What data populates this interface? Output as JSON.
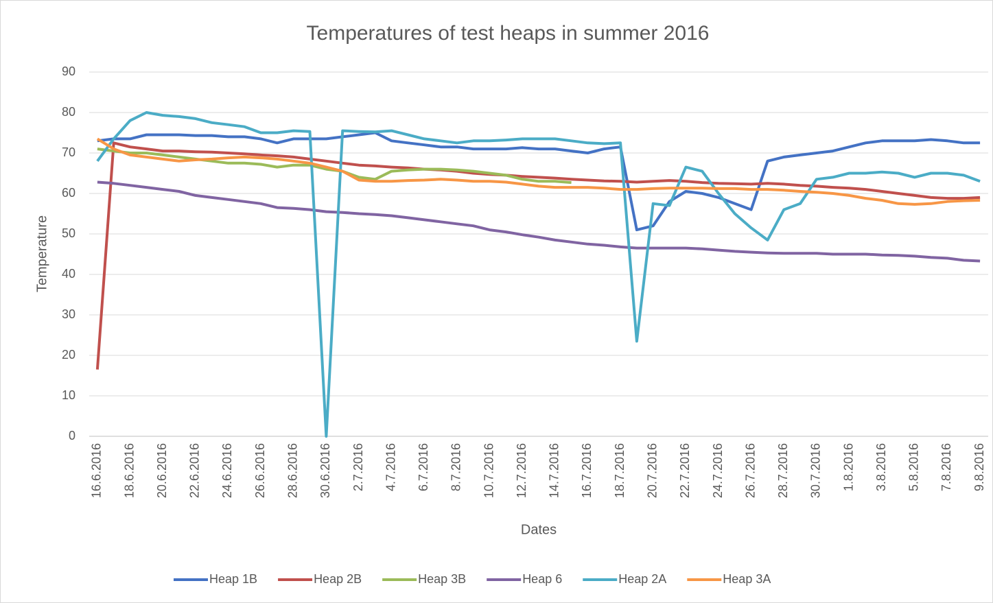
{
  "chart_data": {
    "type": "line",
    "title": "Temperatures of test heaps in summer 2016",
    "x_label": "Dates",
    "y_label": "Temperature",
    "categories": [
      "16.6.2016",
      null,
      "18.6.2016",
      null,
      "20.6.2016",
      null,
      "22.6.2016",
      null,
      "24.6.2016",
      null,
      "26.6.2016",
      null,
      "28.6.2016",
      null,
      "30.6.2016",
      null,
      "2.7.2016",
      null,
      "4.7.2016",
      null,
      "6.7.2016",
      null,
      "8.7.2016",
      null,
      "10.7.2016",
      null,
      "12.7.2016",
      null,
      "14.7.2016",
      null,
      "16.7.2016",
      null,
      "18.7.2016",
      null,
      "20.7.2016",
      null,
      "22.7.2016",
      null,
      "24.7.2016",
      null,
      "26.7.2016",
      null,
      "28.7.2016",
      null,
      "30.7.2016",
      null,
      "1.8.2016",
      null,
      "3.8.2016",
      null,
      "5.8.2016",
      null,
      "7.8.2016",
      null,
      "9.8.2016"
    ],
    "series": [
      {
        "name": "Heap 1B",
        "color": "#4472c4",
        "values": [
          73,
          73.5,
          73.5,
          74.5,
          74.5,
          74.5,
          74.3,
          74.3,
          74,
          74,
          73.5,
          72.5,
          73.5,
          73.5,
          73.5,
          74,
          74.5,
          75,
          73,
          72.5,
          72,
          71.5,
          71.5,
          71,
          71,
          71,
          71.3,
          71,
          71,
          70.5,
          70,
          71,
          71.5,
          51,
          52,
          58,
          60.5,
          60,
          59,
          57.5,
          56,
          68,
          69,
          69.5,
          70,
          70.5,
          71.5,
          72.5,
          73,
          73,
          73,
          73.3,
          73,
          72.5,
          72.5
        ]
      },
      {
        "name": "Heap 2B",
        "color": "#c0504d",
        "values": [
          16.5,
          72.5,
          71.5,
          71,
          70.5,
          70.5,
          70.3,
          70.2,
          70,
          69.8,
          69.5,
          69.3,
          69,
          68.5,
          68,
          67.5,
          67,
          66.8,
          66.5,
          66.3,
          66,
          65.8,
          65.5,
          65,
          64.7,
          64.5,
          64.2,
          64,
          63.8,
          63.5,
          63.3,
          63.1,
          63,
          62.8,
          63,
          63.2,
          63,
          62.7,
          62.5,
          62.4,
          62.3,
          62.5,
          62.3,
          62,
          61.8,
          61.5,
          61.3,
          61,
          60.5,
          60,
          59.5,
          59,
          58.8,
          58.8,
          59
        ]
      },
      {
        "name": "Heap 3B",
        "color": "#9bbb59",
        "values": [
          71,
          70.5,
          70,
          70,
          69.5,
          69,
          68.5,
          68,
          67.5,
          67.5,
          67.2,
          66.5,
          67,
          67,
          66,
          65.5,
          64,
          63.5,
          65.5,
          65.8,
          66,
          66,
          65.8,
          65.5,
          65,
          64.5,
          63.5,
          63,
          63,
          62.7,
          null,
          null,
          null,
          null,
          null,
          null,
          null,
          null,
          null,
          null,
          null,
          null,
          null,
          null,
          null,
          null,
          null,
          null,
          null,
          null,
          null,
          null,
          null,
          null,
          null
        ]
      },
      {
        "name": "Heap 6",
        "color": "#8064a2",
        "values": [
          62.8,
          62.5,
          62,
          61.5,
          61,
          60.5,
          59.5,
          59,
          58.5,
          58,
          57.5,
          56.5,
          56.3,
          56,
          55.5,
          55.3,
          55,
          54.8,
          54.5,
          54,
          53.5,
          53,
          52.5,
          52,
          51,
          50.5,
          49.8,
          49.2,
          48.5,
          48,
          47.5,
          47.2,
          46.8,
          46.5,
          46.5,
          46.5,
          46.5,
          46.3,
          46,
          45.7,
          45.5,
          45.3,
          45.2,
          45.2,
          45.2,
          45,
          45,
          45,
          44.8,
          44.7,
          44.5,
          44.2,
          44,
          43.5,
          43.3
        ]
      },
      {
        "name": "Heap 2A",
        "color": "#4bacc6",
        "values": [
          68,
          73.5,
          78,
          80,
          79.3,
          79,
          78.5,
          77.5,
          77,
          76.5,
          75,
          75,
          75.5,
          75.3,
          0,
          75.5,
          75.3,
          75.2,
          75.5,
          74.5,
          73.5,
          73,
          72.5,
          73,
          73,
          73.2,
          73.5,
          73.5,
          73.5,
          73,
          72.5,
          72.3,
          72.5,
          23.5,
          57.5,
          57,
          66.5,
          65.5,
          60,
          55,
          51.5,
          48.5,
          56,
          57.5,
          63.5,
          64,
          65,
          65,
          65.3,
          65,
          64,
          65,
          65,
          64.5,
          63
        ]
      },
      {
        "name": "Heap 3A",
        "color": "#f79646",
        "values": [
          73.5,
          71,
          69.5,
          69,
          68.5,
          68,
          68.3,
          68.5,
          68.8,
          69,
          68.8,
          68.5,
          68,
          67.5,
          66.5,
          65.5,
          63.3,
          63,
          63,
          63.2,
          63.3,
          63.5,
          63.3,
          63,
          63,
          62.8,
          62.3,
          61.8,
          61.5,
          61.5,
          61.5,
          61.3,
          61,
          61,
          61.2,
          61.3,
          61.3,
          61.3,
          61.2,
          61.2,
          61,
          61,
          60.8,
          60.5,
          60.3,
          60,
          59.5,
          58.8,
          58.3,
          57.5,
          57.3,
          57.5,
          58,
          58.2,
          58.3
        ]
      }
    ],
    "ylim": [
      0,
      90
    ],
    "yticks": [
      0,
      10,
      20,
      30,
      40,
      50,
      60,
      70,
      80,
      90
    ],
    "grid": true,
    "legend": "bottom"
  }
}
